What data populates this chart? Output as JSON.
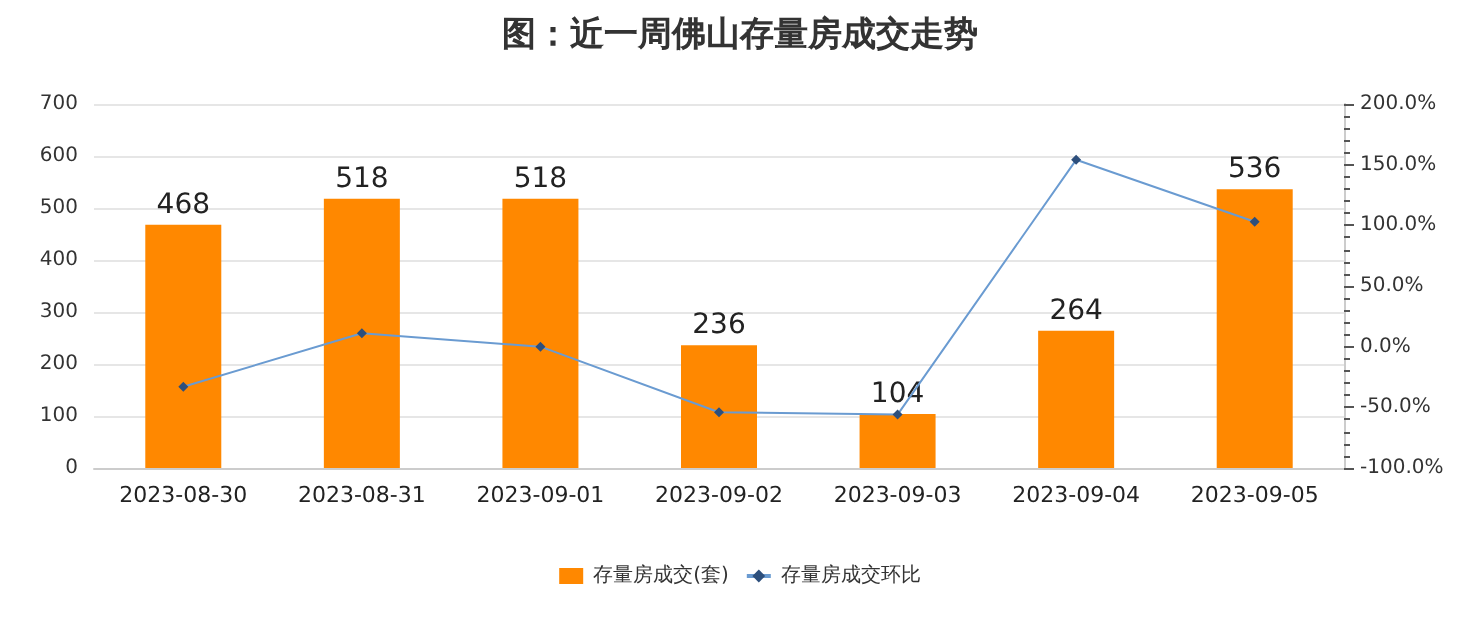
{
  "chart_data": {
    "type": "bar",
    "title": "图：近一周佛山存量房成交走势",
    "categories": [
      "2023-08-30",
      "2023-08-31",
      "2023-09-01",
      "2023-09-02",
      "2023-09-03",
      "2023-09-04",
      "2023-09-05"
    ],
    "series": [
      {
        "name": "存量房成交(套)",
        "color": "#ff8800",
        "values": [
          468,
          518,
          518,
          236,
          104,
          264,
          536
        ],
        "value_labels": [
          "468",
          "518",
          "518",
          "236",
          "104",
          "264",
          "536"
        ]
      },
      {
        "name": "存量房成交环比",
        "type": "line",
        "axis": "y2",
        "color": "#6a9bd1",
        "marker": "diamond",
        "values": [
          -33,
          11,
          0,
          -54,
          -56,
          154,
          103
        ]
      }
    ],
    "ylim": [
      0,
      700
    ],
    "yticks": [
      0,
      100,
      200,
      300,
      400,
      500,
      600,
      700
    ],
    "y2lim": [
      -100,
      200
    ],
    "y2ticks": [
      {
        "value": -100,
        "label": "-100.0%"
      },
      {
        "value": -50,
        "label": "-50.0%"
      },
      {
        "value": 0,
        "label": "0.0%"
      },
      {
        "value": 50,
        "label": "50.0%"
      },
      {
        "value": 100,
        "label": "100.0%"
      },
      {
        "value": 150,
        "label": "150.0%"
      },
      {
        "value": 200,
        "label": "200.0%"
      }
    ],
    "grid": "y",
    "legend": "bottom"
  }
}
